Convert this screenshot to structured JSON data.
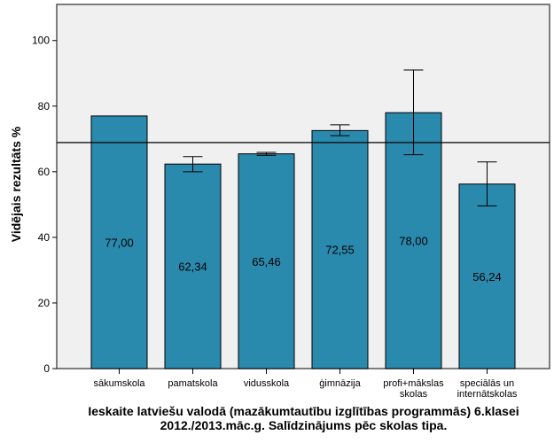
{
  "chart_data": {
    "type": "bar",
    "title_line1": "Ieskaite latviešu valodā (mazākumtautību izglītības programmās) 6.klasei",
    "title_line2": "2012./2013.māc.g. Salīdzinājums pēc skolas tipa.",
    "ylabel": "Vidējais rezultāts %",
    "xlabel": "",
    "ylim": [
      0,
      111
    ],
    "yticks": [
      0,
      20,
      40,
      60,
      80,
      100
    ],
    "categories": [
      [
        "sākumskola"
      ],
      [
        "pamatskola"
      ],
      [
        "vidusskola"
      ],
      [
        "ģimnāzija"
      ],
      [
        "profi+mākslas",
        "skolas"
      ],
      [
        "speciālās un",
        "internātskolas"
      ]
    ],
    "values": [
      77.0,
      62.34,
      65.46,
      72.55,
      78.0,
      56.24
    ],
    "value_labels": [
      "77,00",
      "62,34",
      "65,46",
      "72,55",
      "78,00",
      "56,24"
    ],
    "error_bars": [
      null,
      [
        60.0,
        64.6
      ],
      [
        65.0,
        65.9
      ],
      [
        71.0,
        74.3
      ],
      [
        65.2,
        91.0
      ],
      [
        49.6,
        63.0
      ]
    ],
    "reference_line": 68.9,
    "bar_color": "#2a8aad",
    "background_color": "#f0f0f0",
    "grid": false
  }
}
